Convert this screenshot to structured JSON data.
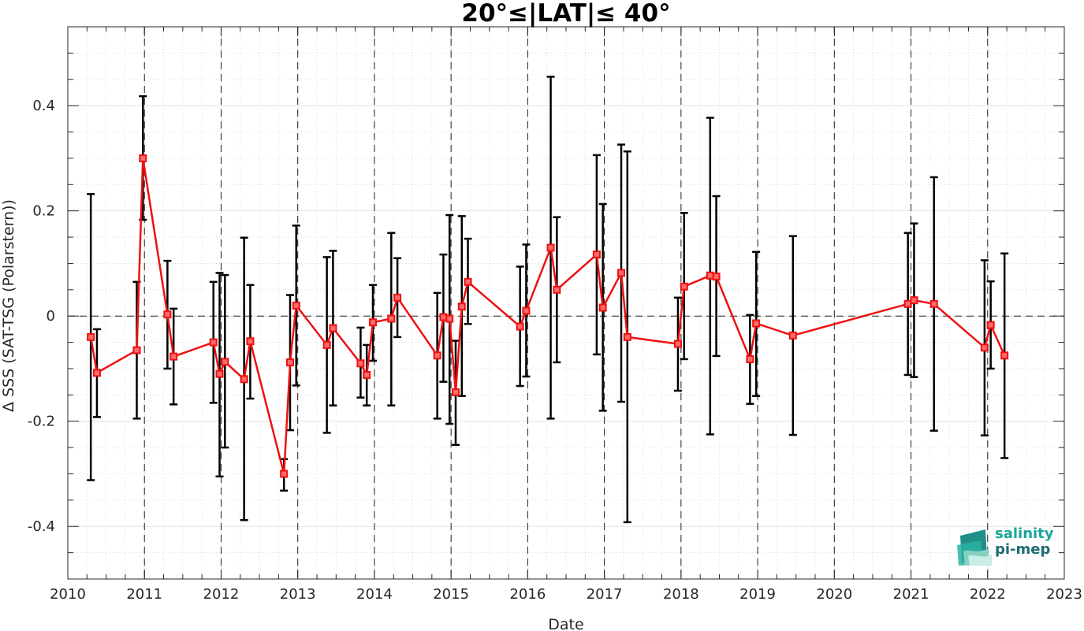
{
  "chart_data": {
    "type": "scatter",
    "title": "20°≤|LAT|≤ 40°",
    "xlabel": "Date",
    "ylabel": "Δ SSS (SAT-TSG (Polarstern))",
    "xlim": [
      2010,
      2023
    ],
    "ylim": [
      -0.5,
      0.55
    ],
    "x_ticks": [
      "2010",
      "2011",
      "2012",
      "2013",
      "2014",
      "2015",
      "2016",
      "2017",
      "2018",
      "2019",
      "2020",
      "2021",
      "2022",
      "2023"
    ],
    "y_ticks": [
      {
        "value": 0.4,
        "label": "0.4"
      },
      {
        "value": 0.2,
        "label": "0.2"
      },
      {
        "value": 0,
        "label": "0"
      },
      {
        "value": -0.2,
        "label": "-0.2"
      },
      {
        "value": -0.4,
        "label": "-0.4"
      }
    ],
    "grid": true,
    "year_boundaries_dashed": [
      2011,
      2012,
      2013,
      2014,
      2015,
      2016,
      2017,
      2018,
      2019,
      2020,
      2021,
      2022
    ],
    "zero_line": 0,
    "colors": {
      "line": "#ee1111",
      "marker": "#ee1111",
      "errorbar": "#000000"
    },
    "points": [
      {
        "x": 2010.3,
        "y": -0.04,
        "lo": -0.312,
        "hi": 0.232
      },
      {
        "x": 2010.38,
        "y": -0.108,
        "lo": -0.192,
        "hi": -0.025
      },
      {
        "x": 2010.9,
        "y": -0.065,
        "lo": -0.195,
        "hi": 0.065
      },
      {
        "x": 2010.98,
        "y": 0.3,
        "lo": 0.183,
        "hi": 0.418
      },
      {
        "x": 2011.3,
        "y": 0.003,
        "lo": -0.1,
        "hi": 0.105
      },
      {
        "x": 2011.38,
        "y": -0.077,
        "lo": -0.168,
        "hi": 0.014
      },
      {
        "x": 2011.9,
        "y": -0.05,
        "lo": -0.165,
        "hi": 0.065
      },
      {
        "x": 2011.98,
        "y": -0.11,
        "lo": -0.305,
        "hi": 0.082
      },
      {
        "x": 2012.05,
        "y": -0.087,
        "lo": -0.25,
        "hi": 0.078
      },
      {
        "x": 2012.3,
        "y": -0.12,
        "lo": -0.388,
        "hi": 0.149
      },
      {
        "x": 2012.38,
        "y": -0.048,
        "lo": -0.157,
        "hi": 0.059
      },
      {
        "x": 2012.82,
        "y": -0.3,
        "lo": -0.332,
        "hi": -0.272
      },
      {
        "x": 2012.9,
        "y": -0.088,
        "lo": -0.217,
        "hi": 0.04
      },
      {
        "x": 2012.98,
        "y": 0.02,
        "lo": -0.132,
        "hi": 0.172
      },
      {
        "x": 2013.38,
        "y": -0.055,
        "lo": -0.222,
        "hi": 0.112
      },
      {
        "x": 2013.46,
        "y": -0.023,
        "lo": -0.17,
        "hi": 0.124
      },
      {
        "x": 2013.82,
        "y": -0.09,
        "lo": -0.155,
        "hi": -0.022
      },
      {
        "x": 2013.9,
        "y": -0.112,
        "lo": -0.17,
        "hi": -0.055
      },
      {
        "x": 2013.98,
        "y": -0.012,
        "lo": -0.085,
        "hi": 0.059
      },
      {
        "x": 2014.22,
        "y": -0.005,
        "lo": -0.17,
        "hi": 0.158
      },
      {
        "x": 2014.3,
        "y": 0.035,
        "lo": -0.04,
        "hi": 0.11
      },
      {
        "x": 2014.82,
        "y": -0.075,
        "lo": -0.195,
        "hi": 0.044
      },
      {
        "x": 2014.9,
        "y": -0.002,
        "lo": -0.125,
        "hi": 0.117
      },
      {
        "x": 2014.98,
        "y": -0.005,
        "lo": -0.205,
        "hi": 0.192
      },
      {
        "x": 2015.06,
        "y": -0.145,
        "lo": -0.245,
        "hi": -0.047
      },
      {
        "x": 2015.14,
        "y": 0.018,
        "lo": -0.152,
        "hi": 0.19
      },
      {
        "x": 2015.22,
        "y": 0.065,
        "lo": -0.015,
        "hi": 0.147
      },
      {
        "x": 2015.9,
        "y": -0.02,
        "lo": -0.133,
        "hi": 0.094
      },
      {
        "x": 2015.98,
        "y": 0.01,
        "lo": -0.115,
        "hi": 0.136
      },
      {
        "x": 2016.3,
        "y": 0.13,
        "lo": -0.195,
        "hi": 0.455
      },
      {
        "x": 2016.38,
        "y": 0.05,
        "lo": -0.088,
        "hi": 0.188
      },
      {
        "x": 2016.9,
        "y": 0.117,
        "lo": -0.073,
        "hi": 0.306
      },
      {
        "x": 2016.98,
        "y": 0.016,
        "lo": -0.18,
        "hi": 0.213
      },
      {
        "x": 2017.22,
        "y": 0.082,
        "lo": -0.163,
        "hi": 0.326
      },
      {
        "x": 2017.3,
        "y": -0.04,
        "lo": -0.392,
        "hi": 0.313
      },
      {
        "x": 2017.96,
        "y": -0.053,
        "lo": -0.142,
        "hi": 0.035
      },
      {
        "x": 2018.04,
        "y": 0.056,
        "lo": -0.082,
        "hi": 0.196
      },
      {
        "x": 2018.38,
        "y": 0.077,
        "lo": -0.225,
        "hi": 0.377
      },
      {
        "x": 2018.46,
        "y": 0.075,
        "lo": -0.076,
        "hi": 0.228
      },
      {
        "x": 2018.9,
        "y": -0.082,
        "lo": -0.167,
        "hi": 0.002
      },
      {
        "x": 2018.98,
        "y": -0.014,
        "lo": -0.152,
        "hi": 0.122
      },
      {
        "x": 2019.46,
        "y": -0.037,
        "lo": -0.226,
        "hi": 0.152
      },
      {
        "x": 2020.96,
        "y": 0.023,
        "lo": -0.112,
        "hi": 0.158
      },
      {
        "x": 2021.04,
        "y": 0.03,
        "lo": -0.116,
        "hi": 0.176
      },
      {
        "x": 2021.3,
        "y": 0.023,
        "lo": -0.218,
        "hi": 0.264
      },
      {
        "x": 2021.96,
        "y": -0.06,
        "lo": -0.227,
        "hi": 0.106
      },
      {
        "x": 2022.04,
        "y": -0.017,
        "lo": -0.1,
        "hi": 0.066
      },
      {
        "x": 2022.22,
        "y": -0.075,
        "lo": -0.27,
        "hi": 0.119
      }
    ]
  },
  "logo": {
    "line1": "salinity",
    "line2": "pi-mep",
    "colors": {
      "teal_light": "#1aa59a",
      "teal_dark": "#1f6b72",
      "wave": "#8fd4c7"
    }
  }
}
